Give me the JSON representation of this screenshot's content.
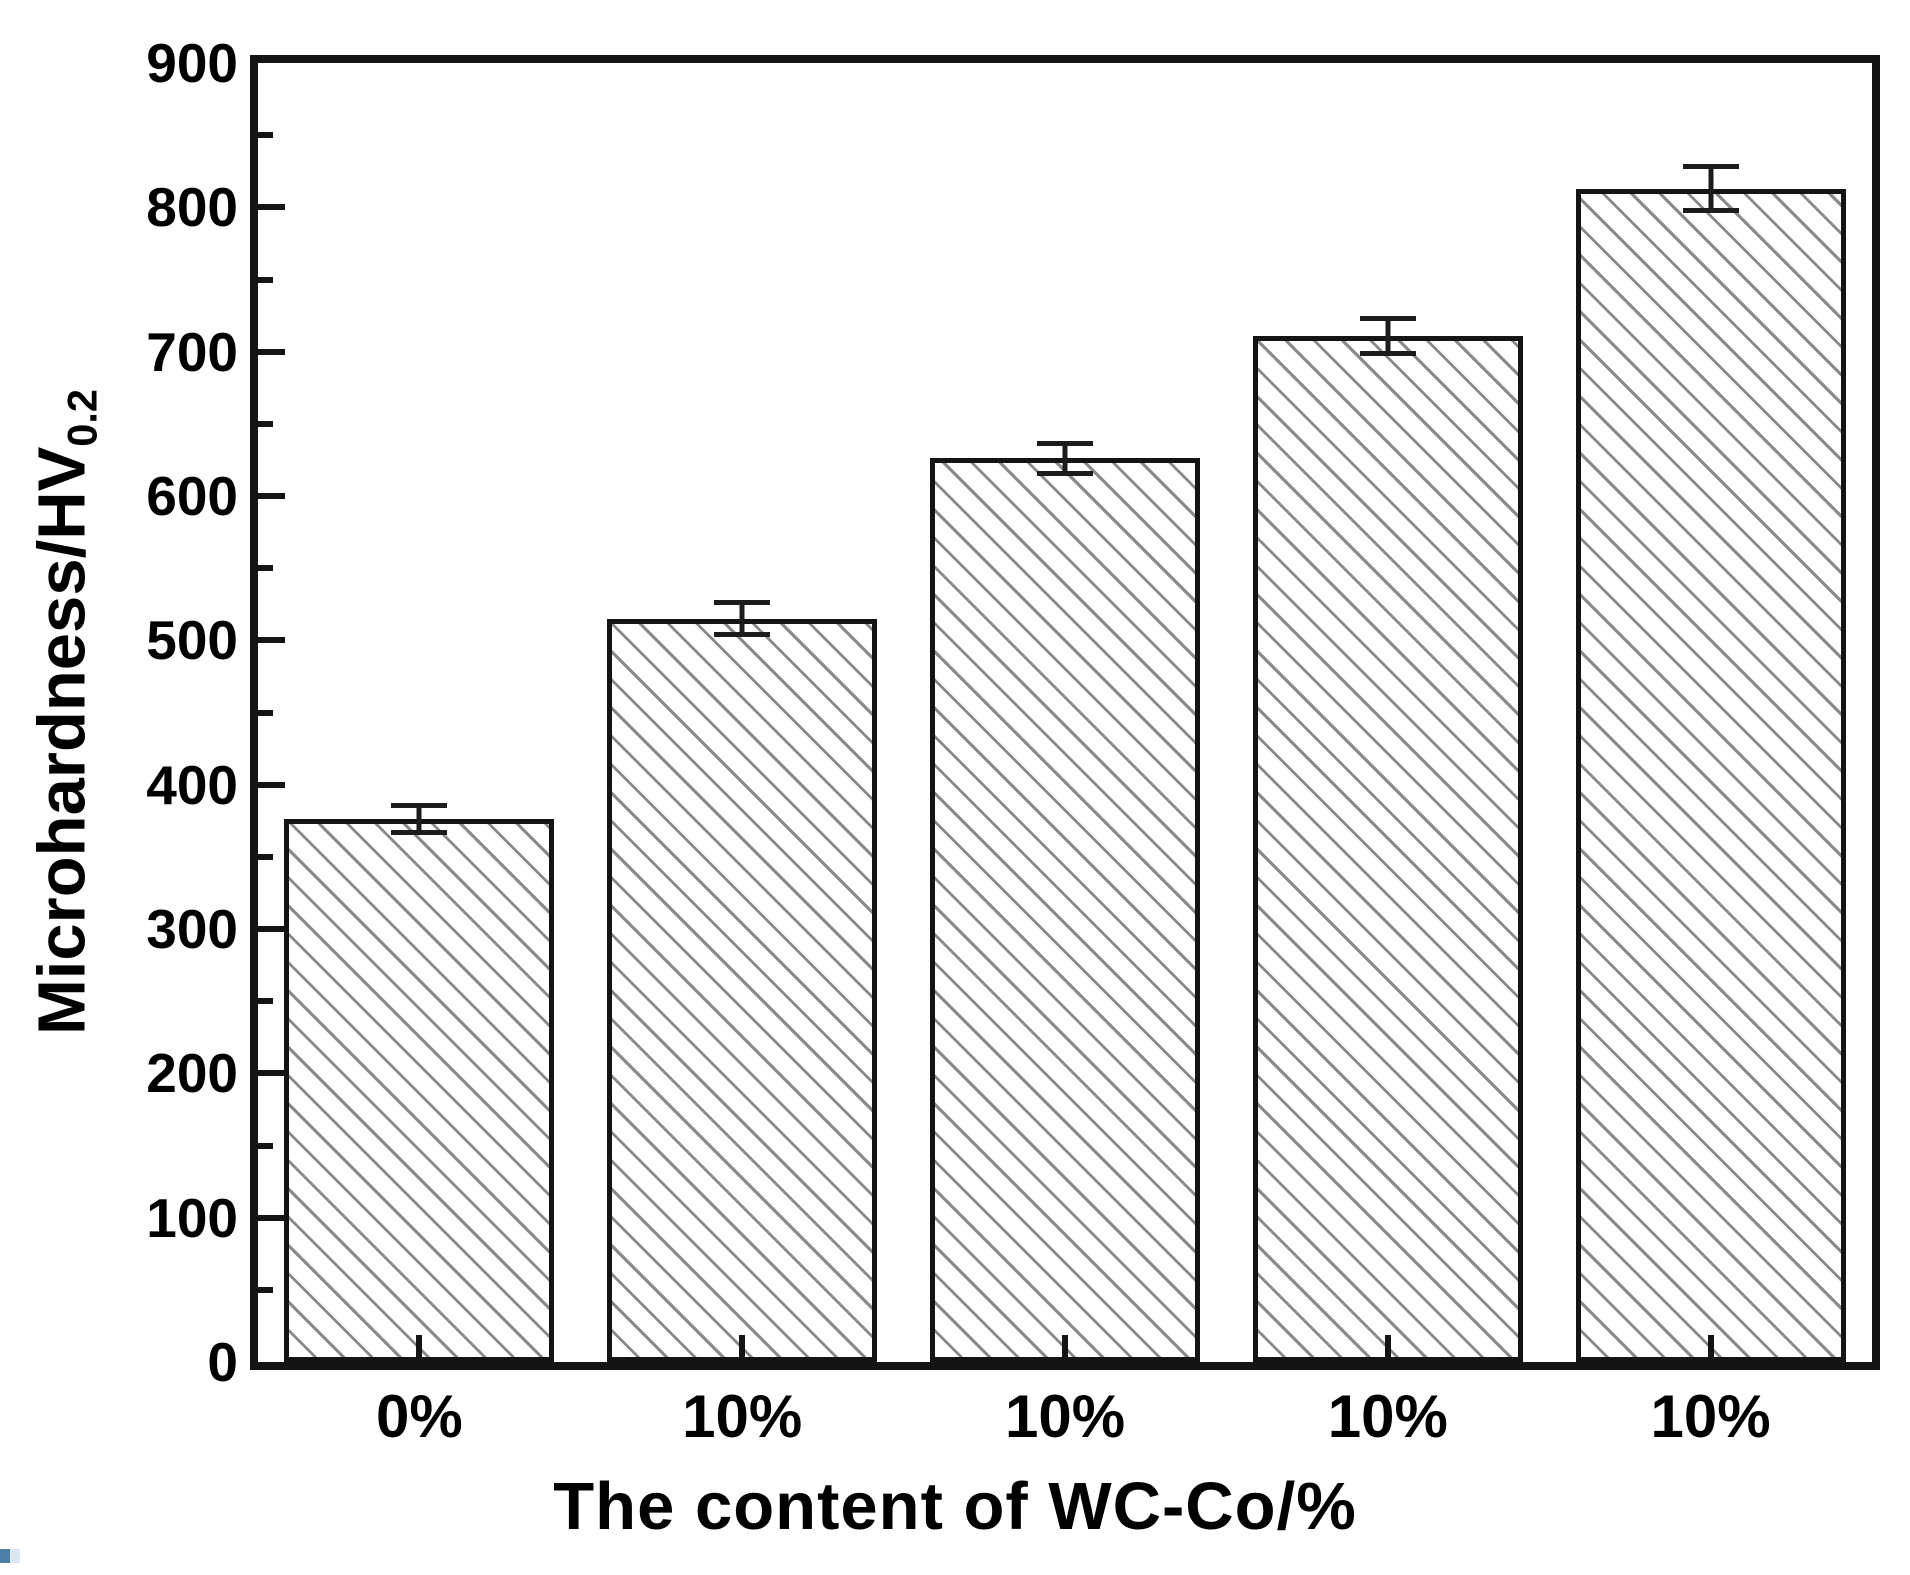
{
  "figure": {
    "background": "#ffffff",
    "axis_color": "#141414",
    "hatch_color": "#8a8a8a",
    "bar_fill": "#ffffff"
  },
  "chart_data": {
    "type": "bar",
    "title": "",
    "categories": [
      "0%",
      "10%",
      "10%",
      "10%",
      "10%"
    ],
    "values": [
      376,
      515,
      626,
      711,
      813
    ],
    "errors": [
      11,
      13,
      12,
      14,
      17
    ],
    "xlabel": "The content of WC-Co/%",
    "ylabel_main": "Microhardness/HV",
    "ylabel_sub": "0.2",
    "ylim": [
      0,
      900
    ],
    "ytick_labels": [
      0,
      100,
      200,
      300,
      400,
      500,
      600,
      700,
      800,
      900
    ],
    "ytick_major_step": 100,
    "ytick_minor_step": 50,
    "grid": false,
    "legend": null,
    "bar_style": "white fill, forward-diagonal gray hatch, black border",
    "error_bar_style": "black vertical line with flat caps"
  },
  "artifact": {
    "dark_color": "#4d7fa8",
    "light_color": "#dce6f0"
  }
}
